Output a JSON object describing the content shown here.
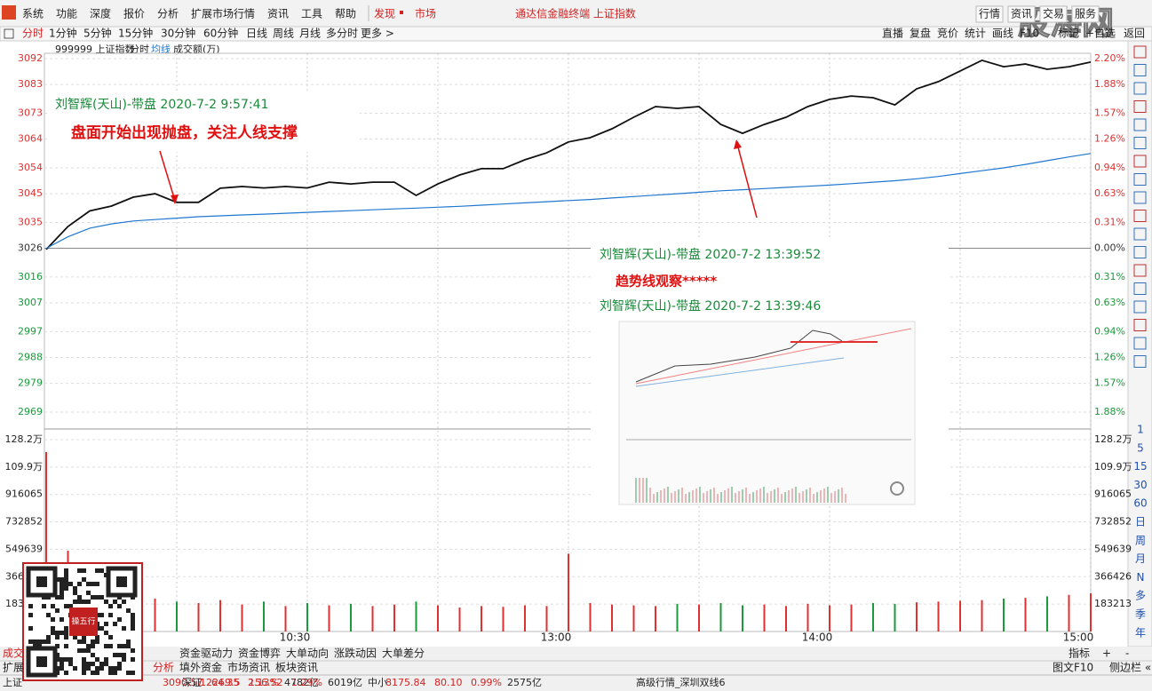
{
  "menu": {
    "items": [
      "系统",
      "功能",
      "深度",
      "报价",
      "分析",
      "扩展市场行情",
      "资讯",
      "工具",
      "帮助"
    ],
    "discover": "发现",
    "market": "市场",
    "title": "通达信金融终端 上证指数",
    "right": [
      "行情",
      "资讯",
      "交易",
      "服务"
    ]
  },
  "toolbar": {
    "periods": [
      "分时",
      "1分钟",
      "5分钟",
      "15分钟",
      "30分钟",
      "60分钟",
      "日线",
      "周线",
      "月线",
      "多分时",
      "更多 >"
    ],
    "right": [
      "直播",
      "复盘",
      "竞价",
      "统计",
      "画线",
      "F10",
      "标记",
      "+自选",
      "返回"
    ]
  },
  "info": {
    "code": "999999 上证指数",
    "mode": "分时",
    "amount": "成交额(万)"
  },
  "watermark": "股海网",
  "chart_data": {
    "type": "line",
    "categories": [
      null,
      null,
      null,
      null,
      null,
      null,
      null,
      null,
      null,
      null,
      null,
      null,
      "10:30",
      null,
      null,
      null,
      null,
      null,
      null,
      null,
      null,
      null,
      null,
      null,
      "13:00",
      null,
      null,
      null,
      null,
      null,
      null,
      null,
      null,
      null,
      null,
      null,
      "14:00",
      null,
      null,
      null,
      null,
      null,
      null,
      null,
      null,
      null,
      null,
      null,
      "15:00"
    ],
    "series": [
      {
        "color": "#111111",
        "values": [
          3025.6,
          3033.6,
          3039,
          3040.7,
          3043.8,
          3045,
          3042,
          3042,
          3046.9,
          3047.5,
          3047,
          3047.5,
          3047,
          3049,
          3048.4,
          3049,
          3049,
          3044.4,
          3048.4,
          3051.5,
          3053.7,
          3053.7,
          3056.8,
          3059.2,
          3063,
          3064.5,
          3067.6,
          3071.6,
          3075.3,
          3074.7,
          3075.3,
          3069.1,
          3066,
          3069.1,
          3071.6,
          3075.3,
          3077.8,
          3079,
          3078.4,
          3075.9,
          3081.5,
          3084,
          3087.7,
          3091.4,
          3089.2,
          3090.1,
          3088.3,
          3089.2,
          3090.8
        ]
      },
      {
        "name": "均线",
        "color": "#1f77d0",
        "values": [
          3026,
          3030,
          3033,
          3034.5,
          3035.5,
          3036,
          3036.5,
          3037,
          3037.3,
          3037.6,
          3037.9,
          3038.2,
          3038.5,
          3038.8,
          3039.1,
          3039.4,
          3039.7,
          3040,
          3040.3,
          3040.6,
          3041,
          3041.4,
          3041.8,
          3042.2,
          3042.6,
          3043,
          3043.5,
          3044,
          3044.5,
          3045,
          3045.5,
          3046,
          3046.4,
          3046.8,
          3047.2,
          3047.6,
          3048,
          3048.5,
          3049,
          3049.5,
          3050.2,
          3051,
          3052,
          3053,
          3054,
          3055.2,
          3056.5,
          3057.8,
          3059
        ]
      }
    ],
    "ylim": [
      2969,
      3092
    ],
    "yticks": [
      3092,
      3083,
      3073,
      3064,
      3054,
      3045,
      3035,
      3026,
      3016,
      3007,
      2997,
      2988,
      2979,
      2969
    ],
    "ytick_colors": [
      "#e03030",
      "#e03030",
      "#e03030",
      "#e03030",
      "#e03030",
      "#e03030",
      "#e03030",
      "#333333",
      "#1a9a3a",
      "#1a9a3a",
      "#1a9a3a",
      "#1a9a3a",
      "#1a9a3a",
      "#1a9a3a"
    ],
    "right_labels": [
      "2.20%",
      "1.88%",
      "1.57%",
      "1.26%",
      "0.94%",
      "0.63%",
      "0.31%",
      "0.00%",
      "0.31%",
      "0.63%",
      "0.94%",
      "1.26%",
      "1.57%",
      "1.88%"
    ],
    "up_color": "#e03030",
    "down_color": "#1a9a3a",
    "volume": {
      "values": [
        1200000,
        540000,
        420000,
        320000,
        260000,
        220000,
        200000,
        190000,
        210000,
        180000,
        200000,
        170000,
        190000,
        175000,
        185000,
        170000,
        180000,
        200000,
        175000,
        160000,
        170000,
        165000,
        175000,
        170000,
        520000,
        190000,
        180000,
        175000,
        170000,
        185000,
        180000,
        190000,
        175000,
        180000,
        170000,
        185000,
        175000,
        180000,
        190000,
        185000,
        195000,
        200000,
        205000,
        210000,
        220000,
        225000,
        235000,
        245000,
        255000
      ],
      "ylim": [
        0,
        1282491
      ],
      "yticks": [
        {
          "value": 1282491,
          "label": "128.2万"
        },
        {
          "value": 1099278,
          "label": "109.9万"
        },
        916065,
        732852,
        549639,
        366426,
        183213
      ]
    }
  },
  "notes": [
    {
      "header": "刘智辉(天山)-带盘 2020-7-2 9:57:41",
      "text": "盘面开始出现抛盘，关注人线支撑"
    },
    {
      "header": "刘智辉(天山)-带盘 2020-7-2 13:39:52",
      "text": "趋势线观察*****",
      "sub": "刘智辉(天山)-带盘 2020-7-2 13:39:46"
    }
  ],
  "qr_label": "操五行",
  "tabs": {
    "row1": [
      "成交",
      "资金驱动力",
      "资金博弈",
      "大单动向",
      "涨跌动因",
      "大单差分"
    ],
    "row1_right": [
      "指标",
      "+",
      "-"
    ],
    "row2": [
      "扩展",
      "分析",
      "填外资金",
      "市场资讯",
      "板块资讯"
    ],
    "row2_right": [
      "图文F10",
      "侧边栏 «"
    ]
  },
  "sidebar": [
    "1",
    "5",
    "15",
    "30",
    "60",
    "日",
    "周",
    "月",
    "N",
    "多",
    "季",
    "年"
  ],
  "status": [
    [
      "上证",
      "3090.57",
      "64.35",
      "2.13%",
      "4782亿"
    ],
    [
      "深证",
      "12269.5",
      "156.52",
      "1.29%",
      "6019亿"
    ],
    [
      "中小",
      "8175.84",
      "80.10",
      "0.99%",
      "2575亿"
    ]
  ],
  "status_extra": "高级行情_深圳双线6"
}
